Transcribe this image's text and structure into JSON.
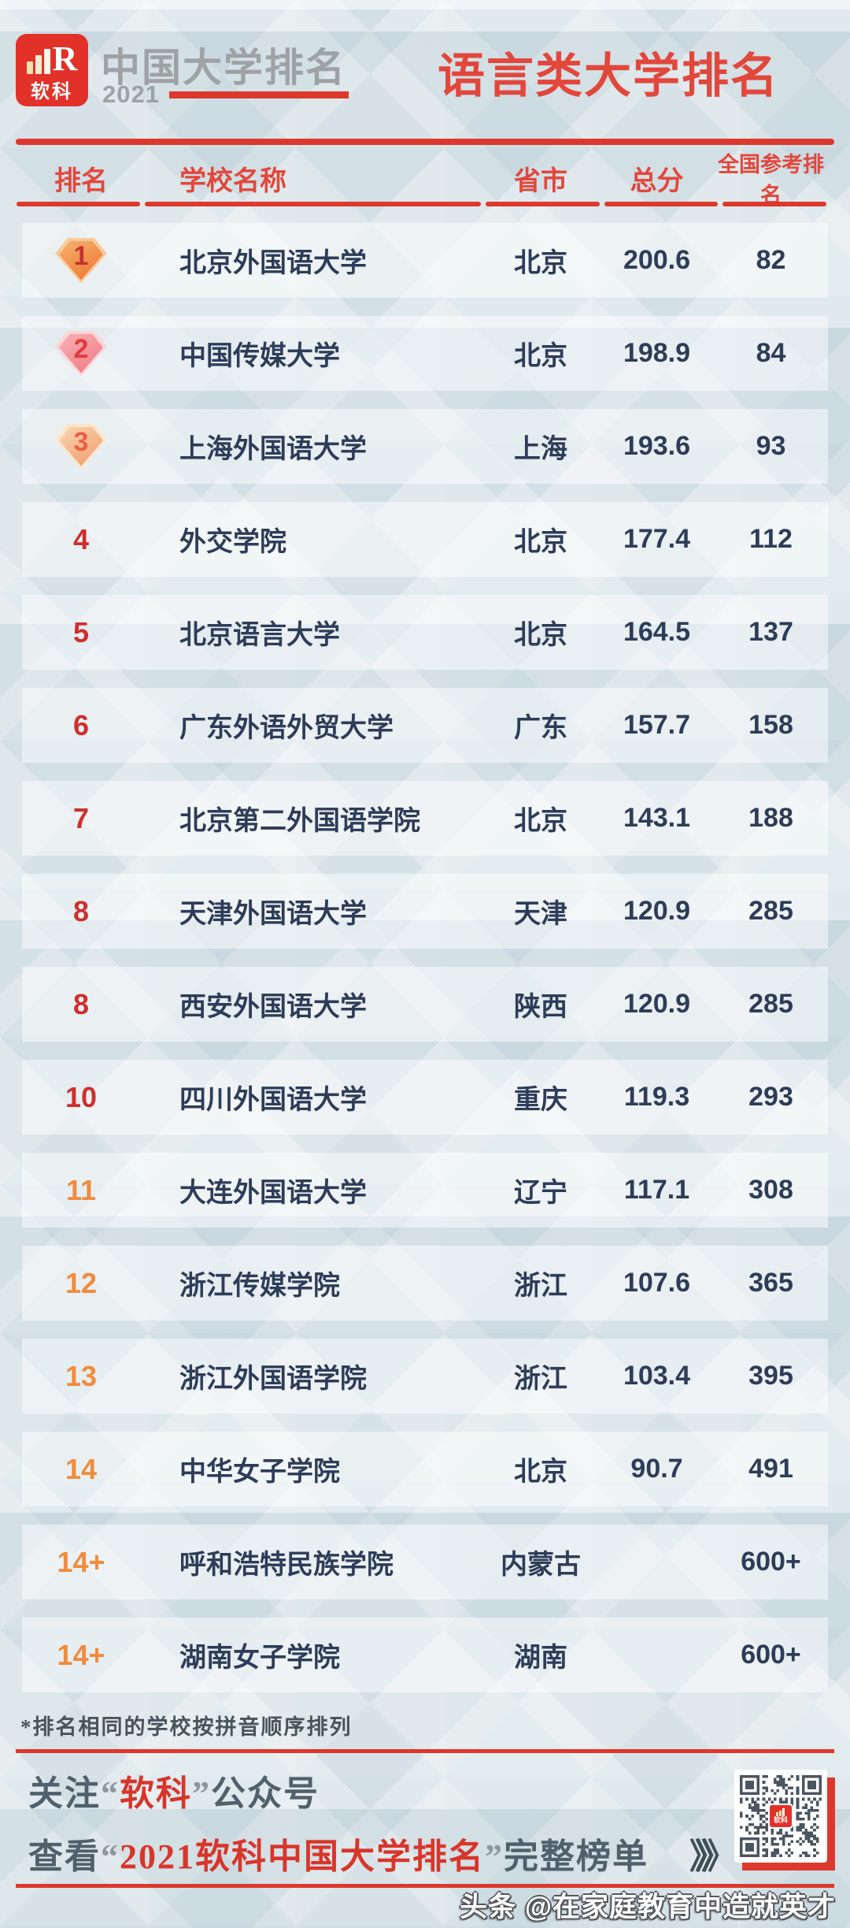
{
  "header": {
    "logo_brand": "软科",
    "logo_mark": "R",
    "main_title": "中国大学排名",
    "year": "2021",
    "page_title": "语言类大学排名"
  },
  "chart_data": {
    "type": "table",
    "title": "语言类大学排名",
    "columns": {
      "rank": "排名",
      "school": "学校名称",
      "province": "省市",
      "score": "总分",
      "national_rank": "全国参考排名"
    },
    "rows": [
      {
        "rank": "1",
        "badge": 1,
        "rank_color": null,
        "school": "北京外国语大学",
        "province": "北京",
        "score": "200.6",
        "national_rank": "82"
      },
      {
        "rank": "2",
        "badge": 2,
        "rank_color": null,
        "school": "中国传媒大学",
        "province": "北京",
        "score": "198.9",
        "national_rank": "84"
      },
      {
        "rank": "3",
        "badge": 3,
        "rank_color": null,
        "school": "上海外国语大学",
        "province": "上海",
        "score": "193.6",
        "national_rank": "93"
      },
      {
        "rank": "4",
        "badge": 0,
        "rank_color": "red",
        "school": "外交学院",
        "province": "北京",
        "score": "177.4",
        "national_rank": "112"
      },
      {
        "rank": "5",
        "badge": 0,
        "rank_color": "red",
        "school": "北京语言大学",
        "province": "北京",
        "score": "164.5",
        "national_rank": "137"
      },
      {
        "rank": "6",
        "badge": 0,
        "rank_color": "red",
        "school": "广东外语外贸大学",
        "province": "广东",
        "score": "157.7",
        "national_rank": "158"
      },
      {
        "rank": "7",
        "badge": 0,
        "rank_color": "red",
        "school": "北京第二外国语学院",
        "province": "北京",
        "score": "143.1",
        "national_rank": "188"
      },
      {
        "rank": "8",
        "badge": 0,
        "rank_color": "red",
        "school": "天津外国语大学",
        "province": "天津",
        "score": "120.9",
        "national_rank": "285"
      },
      {
        "rank": "8",
        "badge": 0,
        "rank_color": "red",
        "school": "西安外国语大学",
        "province": "陕西",
        "score": "120.9",
        "national_rank": "285"
      },
      {
        "rank": "10",
        "badge": 0,
        "rank_color": "red",
        "school": "四川外国语大学",
        "province": "重庆",
        "score": "119.3",
        "national_rank": "293"
      },
      {
        "rank": "11",
        "badge": 0,
        "rank_color": "orange",
        "school": "大连外国语大学",
        "province": "辽宁",
        "score": "117.1",
        "national_rank": "308"
      },
      {
        "rank": "12",
        "badge": 0,
        "rank_color": "orange",
        "school": "浙江传媒学院",
        "province": "浙江",
        "score": "107.6",
        "national_rank": "365"
      },
      {
        "rank": "13",
        "badge": 0,
        "rank_color": "orange",
        "school": "浙江外国语学院",
        "province": "浙江",
        "score": "103.4",
        "national_rank": "395"
      },
      {
        "rank": "14",
        "badge": 0,
        "rank_color": "orange",
        "school": "中华女子学院",
        "province": "北京",
        "score": "90.7",
        "national_rank": "491"
      },
      {
        "rank": "14+",
        "badge": 0,
        "rank_color": "orange",
        "school": "呼和浩特民族学院",
        "province": "内蒙古",
        "score": "",
        "national_rank": "600+"
      },
      {
        "rank": "14+",
        "badge": 0,
        "rank_color": "orange",
        "school": "湖南女子学院",
        "province": "湖南",
        "score": "",
        "national_rank": "600+"
      }
    ]
  },
  "note": {
    "text": "*排名相同的学校按拼音顺序排列"
  },
  "footer": {
    "line1": {
      "prefix": "关注",
      "quote_open": "“",
      "highlight": "软科",
      "quote_close": "”",
      "suffix": "公众号"
    },
    "line2": {
      "prefix": "查看",
      "quote_open": "“",
      "highlight": "2021软科中国大学排名",
      "quote_close": "”",
      "suffix": "完整榜单"
    },
    "arrows": "》》》"
  },
  "watermark": {
    "text": "头条 @在家庭教育中造就英才"
  },
  "colors": {
    "accent_red": "#e2473c",
    "line_red": "#dd382d",
    "rank_red": "#ce2f2b",
    "rank_orange": "#f08c3e",
    "text_navy": "#2d3c59",
    "footer_slate": "#50606c",
    "qr_module": "#4b5560",
    "logo_red": "#e23128",
    "bg": "#dbe4e8"
  }
}
